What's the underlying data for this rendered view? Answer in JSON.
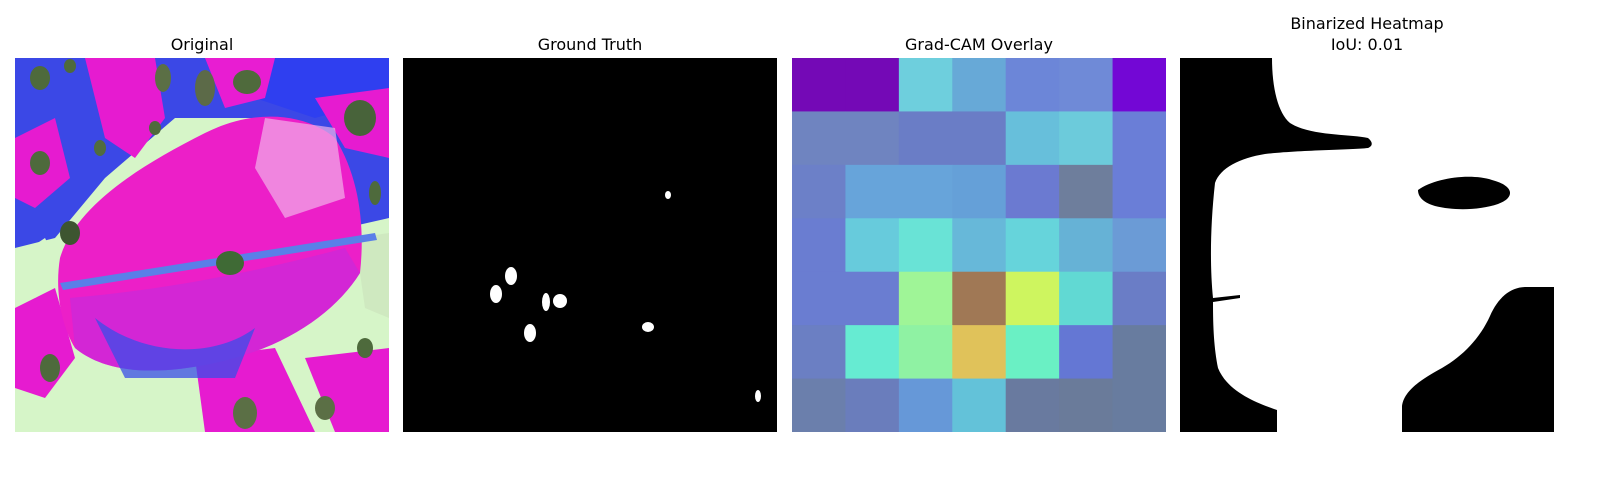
{
  "panels": [
    {
      "title": "Original"
    },
    {
      "title": "Ground Truth"
    },
    {
      "title": "Grad-CAM Overlay"
    },
    {
      "title_line1": "Binarized Heatmap",
      "title_line2": "IoU: 0.01"
    }
  ],
  "gradcam_cells": [
    [
      "#7409b6",
      "#7409b6",
      "#6ecfdd",
      "#67a9d7",
      "#6c86d8",
      "#6f8ad7",
      "#7307d5"
    ],
    [
      "#6f84c0",
      "#6f84c0",
      "#6a7dc6",
      "#6a7dc6",
      "#67bfdb",
      "#6ccbdb",
      "#6a7ed7"
    ],
    [
      "#6c80c8",
      "#67a4da",
      "#67a4da",
      "#65a0d8",
      "#6b7ad1",
      "#6e7e9c",
      "#6a7ed7"
    ],
    [
      "#6a7dd1",
      "#67cbdc",
      "#69e3d6",
      "#67b8d9",
      "#66d4db",
      "#66b2d6",
      "#6b9bd6"
    ],
    [
      "#6a7dd1",
      "#6a7dd1",
      "#9ff597",
      "#a07855",
      "#cef55f",
      "#61d9d3",
      "#6a7dc6"
    ],
    [
      "#6b7fc3",
      "#66ebd2",
      "#8ff2a3",
      "#e0c25a",
      "#6af0c4",
      "#6477d4",
      "#687c9f"
    ],
    [
      "#6b7fac",
      "#6a7dbc",
      "#6698d8",
      "#63c2d9",
      "#697a9f",
      "#6a7b9a",
      "#687c9f"
    ]
  ]
}
